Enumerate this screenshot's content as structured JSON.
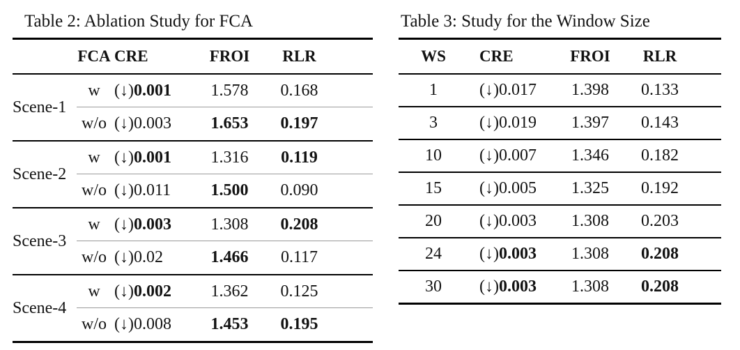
{
  "table2": {
    "title": "Table 2: Ablation Study for FCA",
    "headers": {
      "fca": "FCA",
      "cre": "CRE",
      "froi": "FROI",
      "rlr": "RLR"
    },
    "groups": [
      {
        "scene": "Scene-1",
        "rows": [
          {
            "fca": "w",
            "cre_prefix": "(↓)",
            "cre": "0.001",
            "cre_bold": true,
            "froi": "1.578",
            "froi_bold": false,
            "rlr": "0.168",
            "rlr_bold": false
          },
          {
            "fca": "w/o",
            "cre_prefix": "(↓)",
            "cre": "0.003",
            "cre_bold": false,
            "froi": "1.653",
            "froi_bold": true,
            "rlr": "0.197",
            "rlr_bold": true
          }
        ]
      },
      {
        "scene": "Scene-2",
        "rows": [
          {
            "fca": "w",
            "cre_prefix": "(↓)",
            "cre": "0.001",
            "cre_bold": true,
            "froi": "1.316",
            "froi_bold": false,
            "rlr": "0.119",
            "rlr_bold": true
          },
          {
            "fca": "w/o",
            "cre_prefix": "(↓)",
            "cre": "0.011",
            "cre_bold": false,
            "froi": "1.500",
            "froi_bold": true,
            "rlr": "0.090",
            "rlr_bold": false
          }
        ]
      },
      {
        "scene": "Scene-3",
        "rows": [
          {
            "fca": "w",
            "cre_prefix": "(↓)",
            "cre": "0.003",
            "cre_bold": true,
            "froi": "1.308",
            "froi_bold": false,
            "rlr": "0.208",
            "rlr_bold": true
          },
          {
            "fca": "w/o",
            "cre_prefix": "(↓)",
            "cre": "0.02",
            "cre_bold": false,
            "froi": "1.466",
            "froi_bold": true,
            "rlr": "0.117",
            "rlr_bold": false
          }
        ]
      },
      {
        "scene": "Scene-4",
        "rows": [
          {
            "fca": "w",
            "cre_prefix": "(↓)",
            "cre": "0.002",
            "cre_bold": true,
            "froi": "1.362",
            "froi_bold": false,
            "rlr": "0.125",
            "rlr_bold": false
          },
          {
            "fca": "w/o",
            "cre_prefix": "(↓)",
            "cre": "0.008",
            "cre_bold": false,
            "froi": "1.453",
            "froi_bold": true,
            "rlr": "0.195",
            "rlr_bold": true
          }
        ]
      }
    ]
  },
  "table3": {
    "title": "Table 3: Study for the Window Size",
    "headers": {
      "ws": "WS",
      "cre": "CRE",
      "froi": "FROI",
      "rlr": "RLR"
    },
    "rows": [
      {
        "ws": "1",
        "cre_prefix": "(↓)",
        "cre": "0.017",
        "cre_bold": false,
        "froi": "1.398",
        "froi_bold": false,
        "rlr": "0.133",
        "rlr_bold": false
      },
      {
        "ws": "3",
        "cre_prefix": "(↓)",
        "cre": "0.019",
        "cre_bold": false,
        "froi": "1.397",
        "froi_bold": false,
        "rlr": "0.143",
        "rlr_bold": false
      },
      {
        "ws": "10",
        "cre_prefix": "(↓)",
        "cre": "0.007",
        "cre_bold": false,
        "froi": "1.346",
        "froi_bold": false,
        "rlr": "0.182",
        "rlr_bold": false
      },
      {
        "ws": "15",
        "cre_prefix": "(↓)",
        "cre": "0.005",
        "cre_bold": false,
        "froi": "1.325",
        "froi_bold": false,
        "rlr": "0.192",
        "rlr_bold": false
      },
      {
        "ws": "20",
        "cre_prefix": "(↓)",
        "cre": "0.003",
        "cre_bold": false,
        "froi": "1.308",
        "froi_bold": false,
        "rlr": "0.203",
        "rlr_bold": false
      },
      {
        "ws": "24",
        "cre_prefix": "(↓)",
        "cre": "0.003",
        "cre_bold": true,
        "froi": "1.308",
        "froi_bold": false,
        "rlr": "0.208",
        "rlr_bold": true
      },
      {
        "ws": "30",
        "cre_prefix": "(↓)",
        "cre": "0.003",
        "cre_bold": true,
        "froi": "1.308",
        "froi_bold": false,
        "rlr": "0.208",
        "rlr_bold": true
      }
    ]
  }
}
